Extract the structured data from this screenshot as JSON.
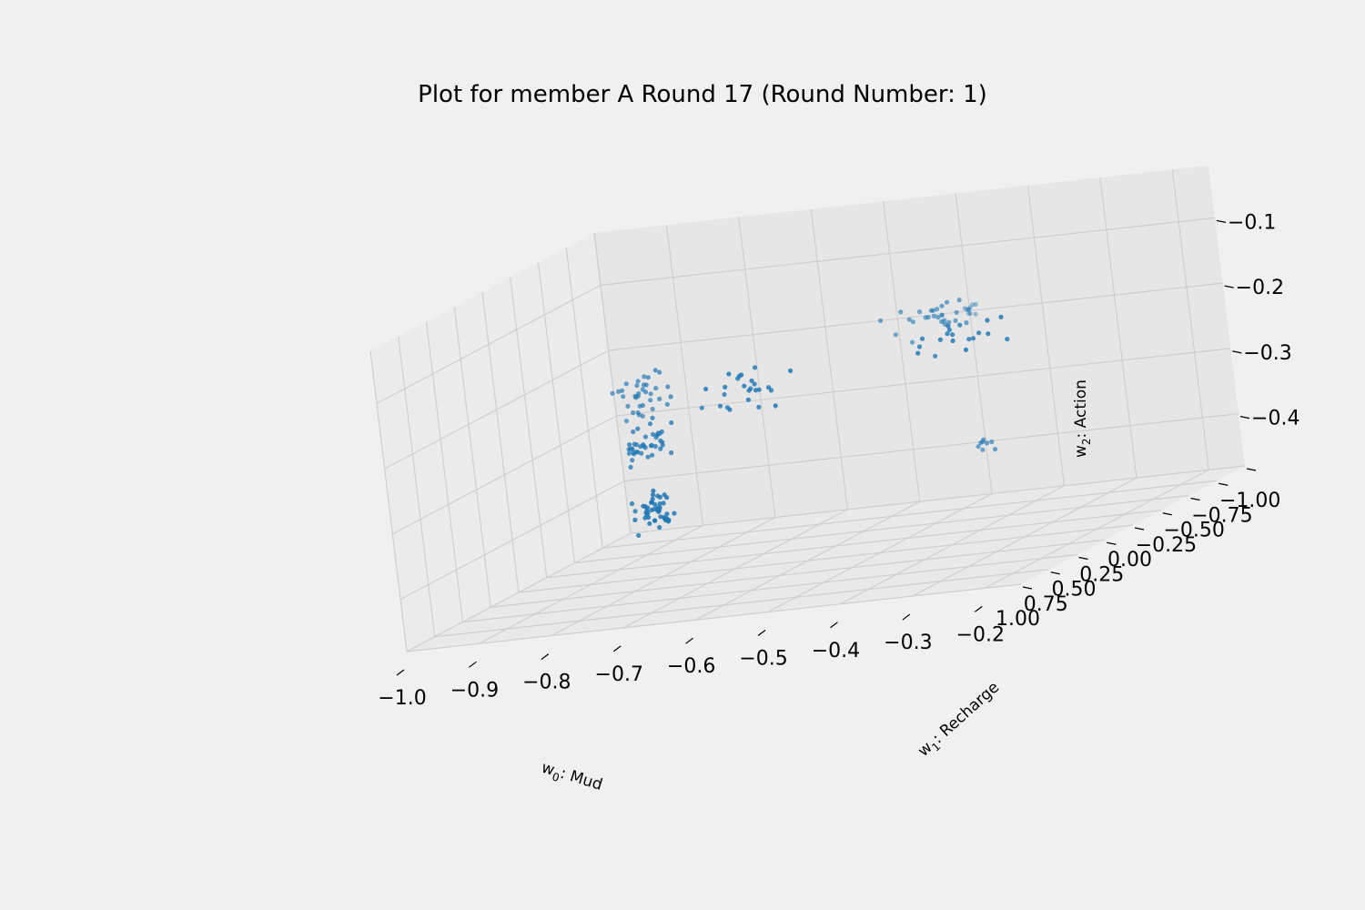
{
  "chart_data": {
    "type": "scatter",
    "projection": "3d",
    "title": "Plot for member A Round 17 (Round Number: 1)",
    "x_axis": {
      "label": "Mud",
      "symbol": "w",
      "index": "0",
      "range": [
        -1.0,
        -0.15
      ],
      "ticks": [
        -1.0,
        -0.9,
        -0.8,
        -0.7,
        -0.6,
        -0.5,
        -0.4,
        -0.3,
        -0.2
      ],
      "tick_labels": [
        "−1.0",
        "−0.9",
        "−0.8",
        "−0.7",
        "−0.6",
        "−0.5",
        "−0.4",
        "−0.3",
        "−0.2"
      ]
    },
    "y_axis": {
      "label": "Recharge",
      "symbol": "w",
      "index": "1",
      "range": [
        -1.0,
        1.0
      ],
      "ticks": [
        -1.0,
        -0.75,
        -0.5,
        -0.25,
        0.0,
        0.25,
        0.5,
        0.75,
        1.0
      ],
      "tick_labels": [
        "−1.00",
        "−0.75",
        "−0.50",
        "−0.25",
        "0.00",
        "0.25",
        "0.50",
        "0.75",
        "1.00"
      ]
    },
    "z_axis": {
      "label": "Action",
      "symbol": "w",
      "index": "2",
      "range": [
        -0.48,
        -0.02
      ],
      "ticks": [
        -0.4,
        -0.3,
        -0.2,
        -0.1
      ],
      "tick_labels": [
        "−0.4",
        "−0.3",
        "−0.2",
        "−0.1"
      ]
    },
    "grid": true,
    "point_color": "#1f77b4",
    "clusters": [
      {
        "x": -0.9,
        "y": -0.6,
        "z": -0.42,
        "spread": [
          0.03,
          0.12,
          0.05
        ],
        "count": 45
      },
      {
        "x": -0.85,
        "y": -0.3,
        "z": -0.3,
        "spread": [
          0.05,
          0.15,
          0.05
        ],
        "count": 40
      },
      {
        "x": -0.8,
        "y": 0.0,
        "z": -0.2,
        "spread": [
          0.05,
          0.2,
          0.05
        ],
        "count": 35
      },
      {
        "x": -0.75,
        "y": -0.55,
        "z": -0.25,
        "spread": [
          0.08,
          0.2,
          0.05
        ],
        "count": 25
      },
      {
        "x": -0.45,
        "y": -0.5,
        "z": -0.2,
        "spread": [
          0.1,
          0.25,
          0.04
        ],
        "count": 20
      },
      {
        "x": -0.35,
        "y": 0.2,
        "z": -0.12,
        "spread": [
          0.08,
          0.25,
          0.04
        ],
        "count": 25
      },
      {
        "x": -0.18,
        "y": 0.95,
        "z": -0.06,
        "spread": [
          0.015,
          0.05,
          0.02
        ],
        "count": 8
      },
      {
        "x": -0.3,
        "y": 0.15,
        "z": -0.32,
        "spread": [
          0.03,
          0.08,
          0.02
        ],
        "count": 8
      }
    ]
  }
}
